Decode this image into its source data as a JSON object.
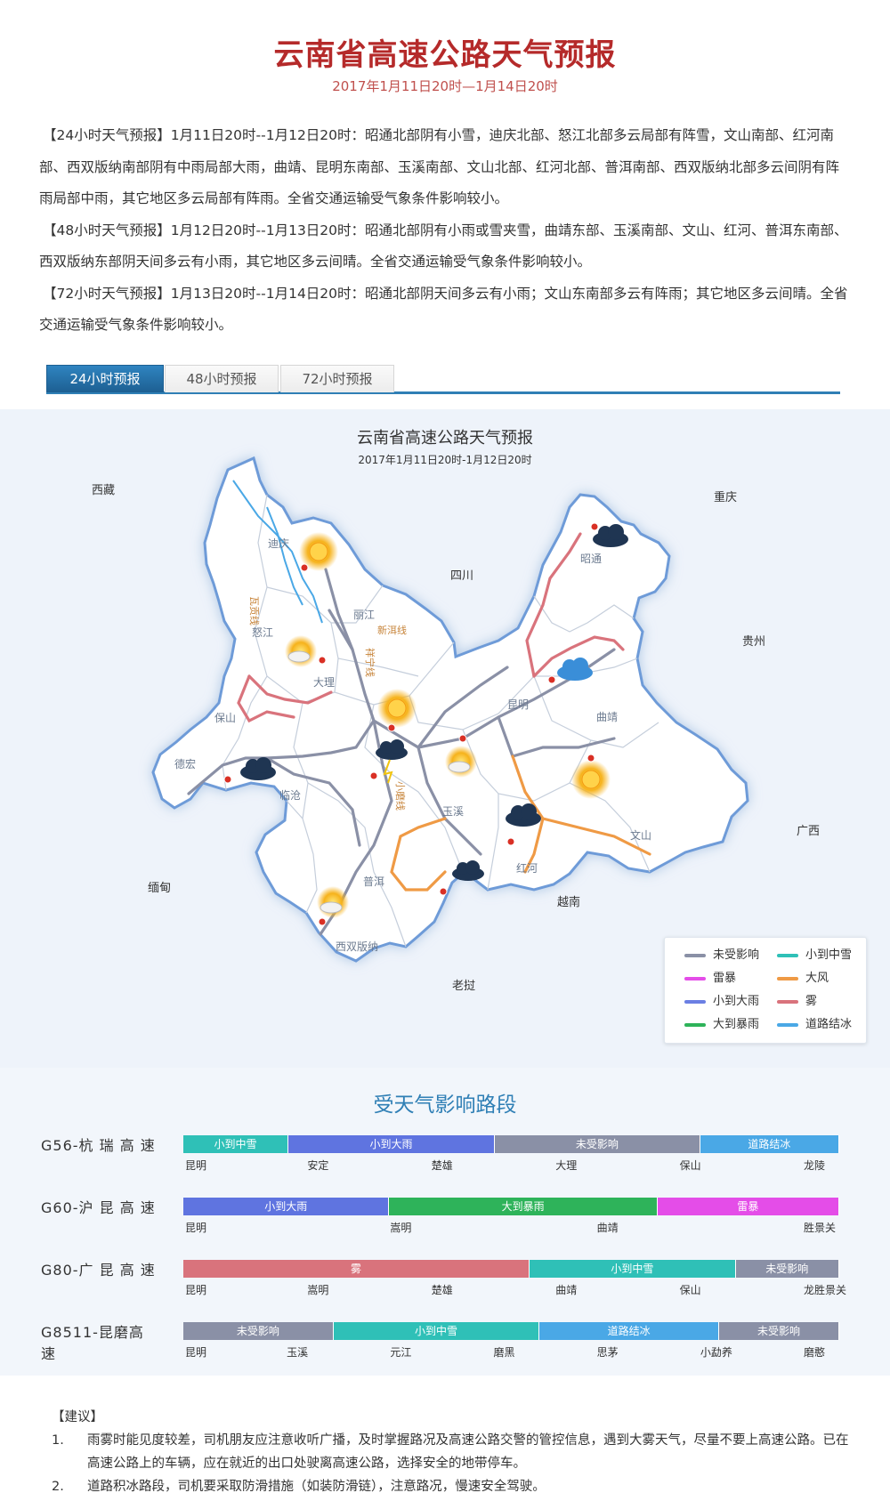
{
  "header": {
    "title": "云南省高速公路天气预报",
    "subtitle": "2017年1月11日20时—1月14日20时"
  },
  "forecasts": [
    "【24小时天气预报】1月11日20时--1月12日20时：昭通北部阴有小雪，迪庆北部、怒江北部多云局部有阵雪，文山南部、红河南部、西双版纳南部阴有中雨局部大雨，曲靖、昆明东南部、玉溪南部、文山北部、红河北部、普洱南部、西双版纳北部多云间阴有阵雨局部中雨，其它地区多云局部有阵雨。全省交通运输受气象条件影响较小。",
    "【48小时天气预报】1月12日20时--1月13日20时：昭通北部阴有小雨或雪夹雪，曲靖东部、玉溪南部、文山、红河、普洱东南部、西双版纳东部阴天间多云有小雨，其它地区多云间晴。全省交通运输受气象条件影响较小。",
    "【72小时天气预报】1月13日20时--1月14日20时：昭通北部阴天间多云有小雨；文山东南部多云有阵雨；其它地区多云间晴。全省交通运输受气象条件影响较小。"
  ],
  "tabs": [
    "24小时预报",
    "48小时预报",
    "72小时预报"
  ],
  "map": {
    "title": "云南省高速公路天气预报",
    "subtitle": "2017年1月11日20时-1月12日20时",
    "neighbors": {
      "xizang": "西藏",
      "chongqing": "重庆",
      "sichuan": "四川",
      "guizhou": "贵州",
      "guangxi": "广西",
      "miandian": "缅甸",
      "yuenan": "越南",
      "laowo": "老挝"
    },
    "cities": {
      "diqing": "迪庆",
      "nujiang": "怒江",
      "lijiang": "丽江",
      "dali": "大理",
      "baoshan": "保山",
      "dehong": "德宏",
      "lincang": "临沧",
      "puer": "普洱",
      "xishuangbanna": "西双版纳",
      "yuxi": "玉溪",
      "kunming": "昆明",
      "qujing": "曲靖",
      "zhaotong": "昭通",
      "honghe": "红河",
      "wenshan": "文山"
    },
    "lines": {
      "wa": "瓦贡线",
      "xinning": "新洱线",
      "xiangning": "祥宁线",
      "xiaomo": "小磨线"
    },
    "legend": [
      {
        "label": "未受影响",
        "color": "#8a90a6"
      },
      {
        "label": "小到中雪",
        "color": "#2fc0b7"
      },
      {
        "label": "雷暴",
        "color": "#e44de8"
      },
      {
        "label": "大风",
        "color": "#ef9a45"
      },
      {
        "label": "小到大雨",
        "color": "#6b7fe3"
      },
      {
        "label": "雾",
        "color": "#d9737c"
      },
      {
        "label": "大到暴雨",
        "color": "#2eb35a"
      },
      {
        "label": "道路结冰",
        "color": "#4aa8e6"
      }
    ]
  },
  "affected": {
    "title": "受天气影响路段",
    "roads": [
      {
        "name": "G56-杭 瑞 高 速",
        "segments": [
          {
            "label": "小到中雪",
            "color": "#2fc0b7",
            "w": 16
          },
          {
            "label": "小到大雨",
            "color": "#5f74e0",
            "w": 31.5
          },
          {
            "label": "未受影响",
            "color": "#8a90a6",
            "w": 31.3
          },
          {
            "label": "道路结冰",
            "color": "#4aa8e6",
            "w": 21.2
          }
        ],
        "cities": [
          "昆明",
          "安定",
          "楚雄",
          "大理",
          "保山",
          "龙陵"
        ]
      },
      {
        "name": "G60-沪 昆 高 速",
        "segments": [
          {
            "label": "小到大雨",
            "color": "#5f74e0",
            "w": 31.4
          },
          {
            "label": "大到暴雨",
            "color": "#2eb35a",
            "w": 40.9
          },
          {
            "label": "雷暴",
            "color": "#e44de8",
            "w": 27.7
          }
        ],
        "cities": [
          "昆明",
          "嵩明",
          "曲靖",
          "胜景关"
        ]
      },
      {
        "name": "G80-广 昆 高 速",
        "segments": [
          {
            "label": "雾",
            "color": "#d9737c",
            "w": 52.8
          },
          {
            "label": "小到中雪",
            "color": "#2fc0b7",
            "w": 31.4
          },
          {
            "label": "未受影响",
            "color": "#8a90a6",
            "w": 15.8
          }
        ],
        "cities": [
          "昆明",
          "嵩明",
          "楚雄",
          "曲靖",
          "保山",
          "龙胜景关"
        ]
      },
      {
        "name": "G8511-昆磨高速",
        "segments": [
          {
            "label": "未受影响",
            "color": "#8a90a6",
            "w": 22.9
          },
          {
            "label": "小到中雪",
            "color": "#2fc0b7",
            "w": 31.4
          },
          {
            "label": "道路结冰",
            "color": "#4aa8e6",
            "w": 27.4
          },
          {
            "label": "未受影响",
            "color": "#8a90a6",
            "w": 18.3
          }
        ],
        "cities": [
          "昆明",
          "玉溪",
          "元江",
          "磨黑",
          "思茅",
          "小勐养",
          "磨憨"
        ]
      }
    ]
  },
  "advice": {
    "heading": "【建议】",
    "items": [
      {
        "num": "1.",
        "text": "雨雾时能见度较差，司机朋友应注意收听广播，及时掌握路况及高速公路交警的管控信息，遇到大雾天气，尽量不要上高速公路。已在高速公路上的车辆，应在就近的出口处驶离高速公路，选择安全的地带停车。"
      },
      {
        "num": "2.",
        "text": "道路积冰路段，司机要采取防滑措施（如装防滑链），注意路况，慢速安全驾驶。"
      }
    ]
  }
}
